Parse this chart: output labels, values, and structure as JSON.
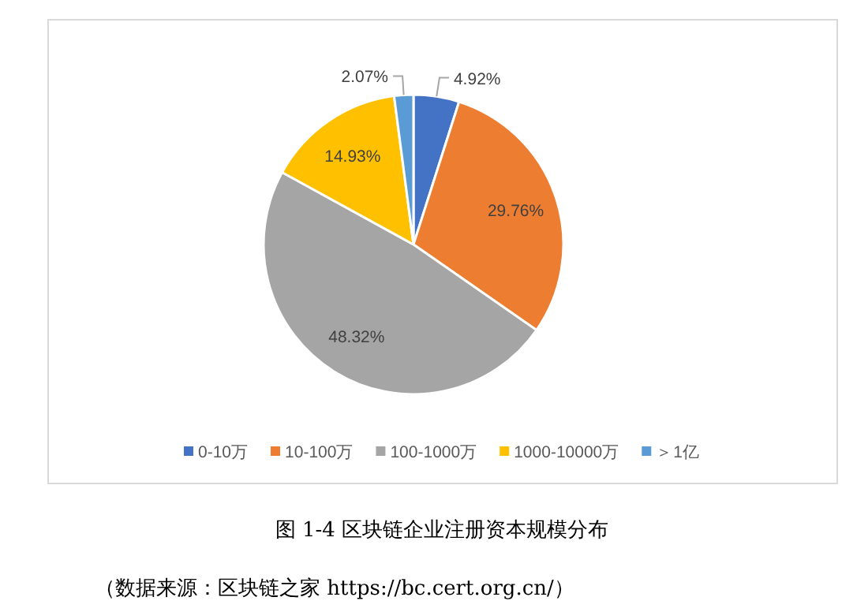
{
  "chart_data": {
    "type": "pie",
    "categories": [
      "0-10万",
      "10-100万",
      "100-1000万",
      "1000-10000万",
      "＞1亿"
    ],
    "values": [
      4.92,
      29.76,
      48.32,
      14.93,
      2.07
    ],
    "value_labels": [
      "4.92%",
      "29.76%",
      "48.32%",
      "14.93%",
      "2.07%"
    ],
    "colors": [
      "#4472c4",
      "#ed7d31",
      "#a5a5a5",
      "#ffc000",
      "#5b9bd5"
    ],
    "legend": "bottom",
    "annotations": [
      "图 1-4 区块链企业注册资本规模分布",
      "（数据来源：区块链之家 https://bc.cert.org.cn/）"
    ]
  }
}
